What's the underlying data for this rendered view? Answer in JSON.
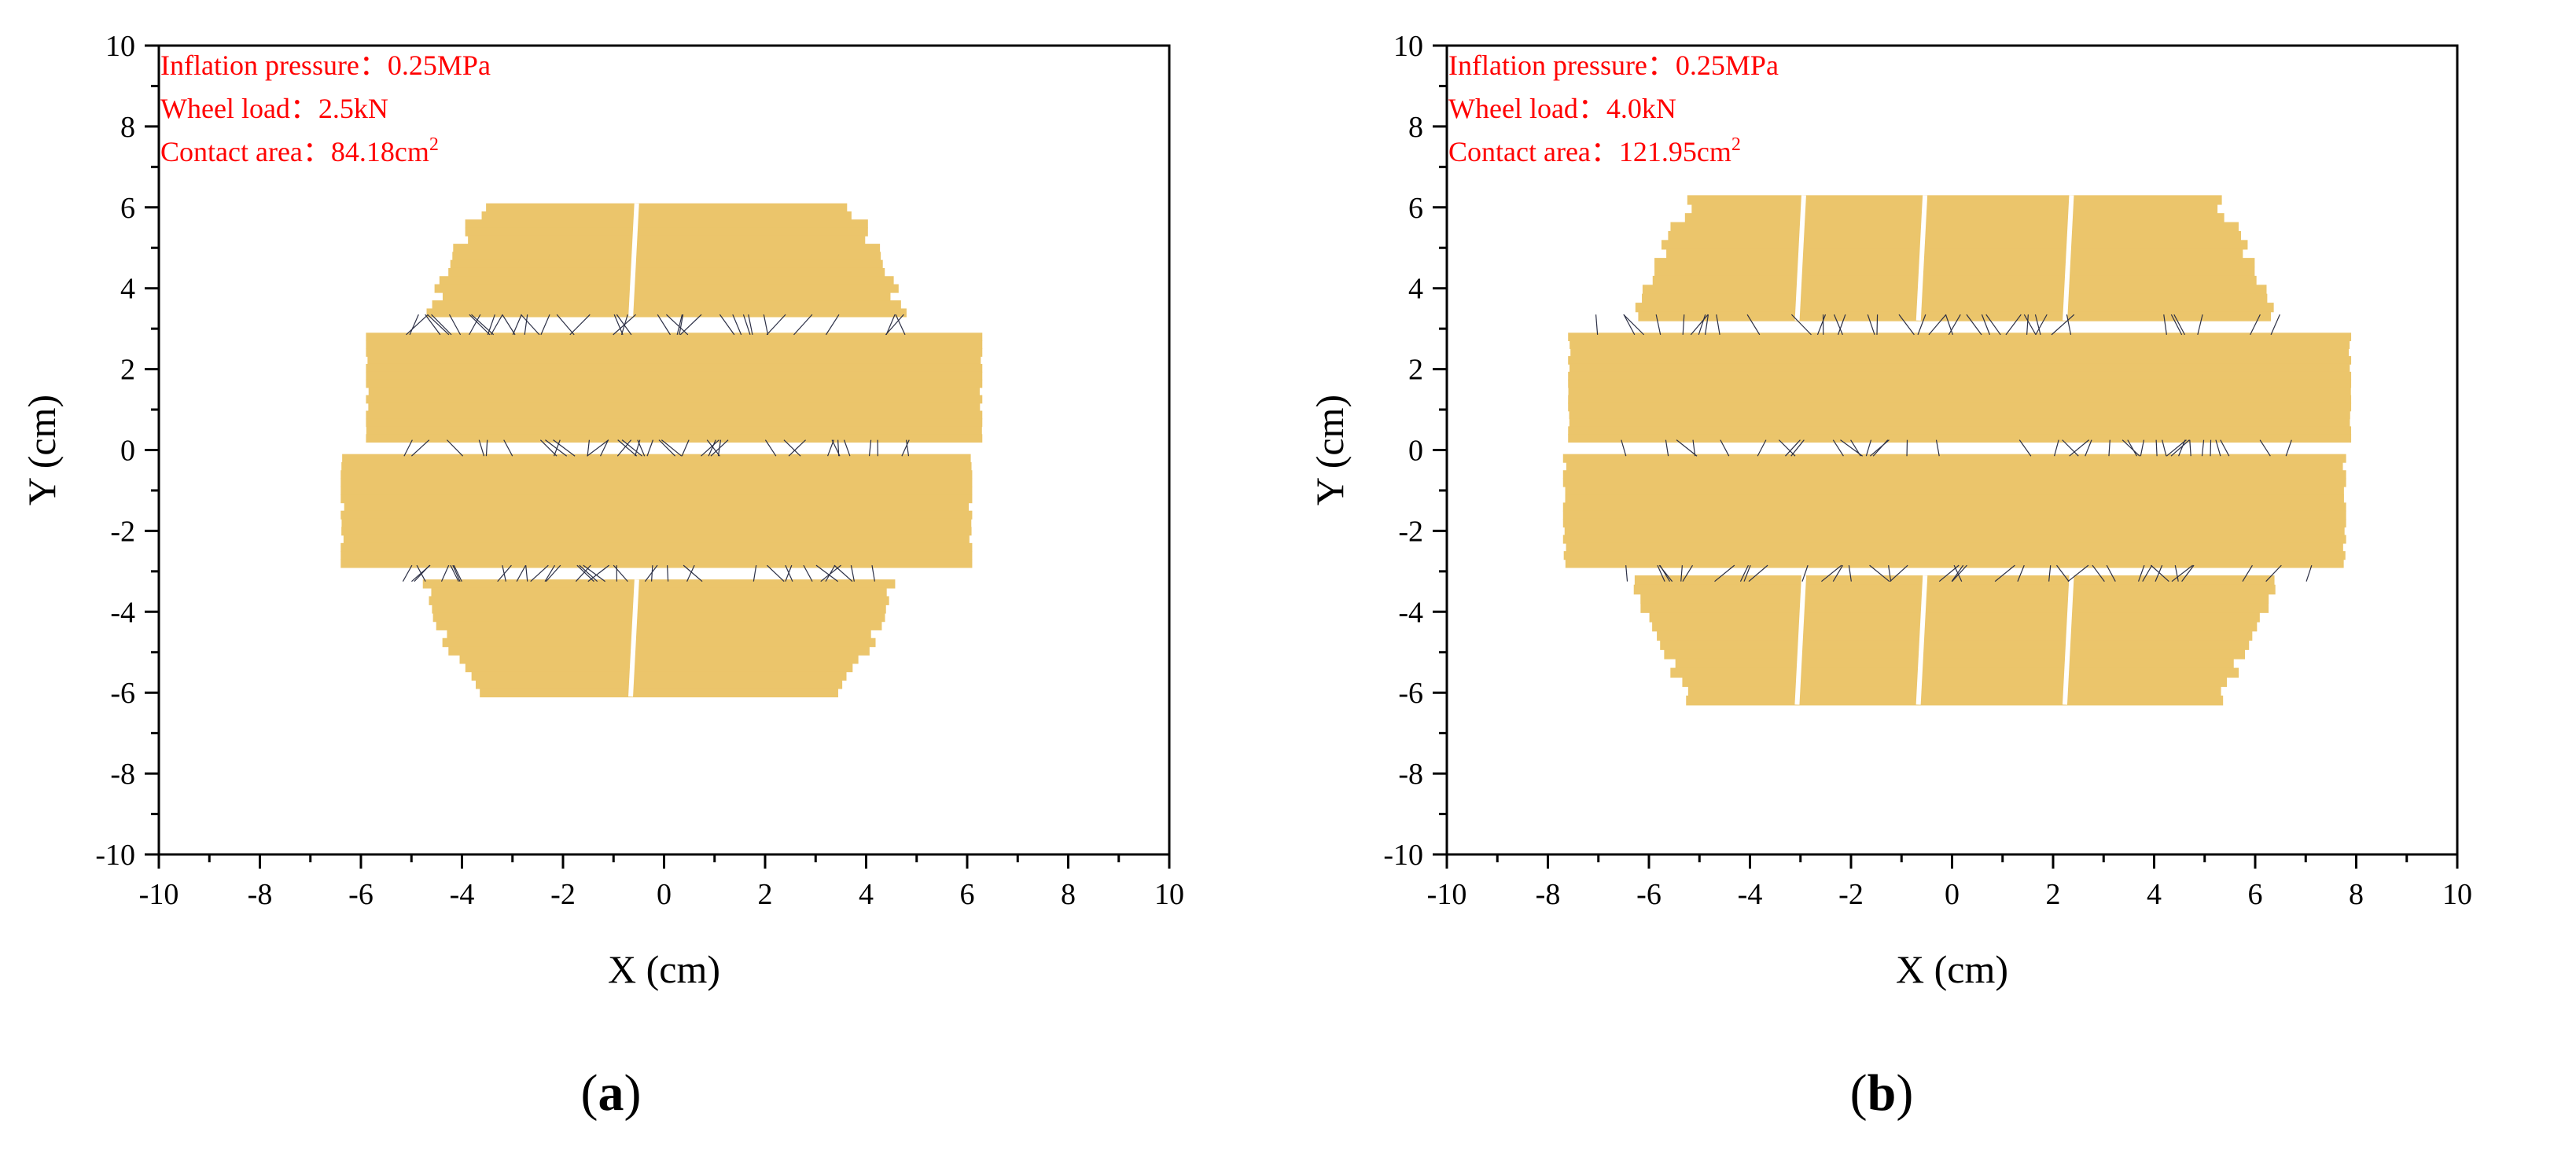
{
  "colors": {
    "patch": "#ebc56b",
    "annotation": "#ff0000",
    "axis": "#000000",
    "background": "#ffffff"
  },
  "chart_data": [
    {
      "type": "scatter",
      "panel_label": {
        "open": "(",
        "letter": "a",
        "close": ")"
      },
      "xlabel": "X (cm)",
      "ylabel": "Y (cm)",
      "xlim": [
        -10,
        10
      ],
      "ylim": [
        -10,
        10
      ],
      "xticks": [
        -10,
        -8,
        -6,
        -4,
        -2,
        0,
        2,
        4,
        6,
        8,
        10
      ],
      "yticks": [
        -10,
        -8,
        -6,
        -4,
        -2,
        0,
        2,
        4,
        6,
        8,
        10
      ],
      "grid": false,
      "annotations": [
        {
          "text": "Inflation pressure：0.25MPa",
          "sup": ""
        },
        {
          "text": "Wheel load：2.5kN",
          "sup": ""
        },
        {
          "text": "Contact area：84.18cm",
          "sup": "2"
        }
      ],
      "contact_bands": [
        {
          "y_top": 6.1,
          "y_bottom": 3.3,
          "x_left": -4.7,
          "x_right": 4.8
        },
        {
          "y_top": 2.9,
          "y_bottom": 0.2,
          "x_left": -5.9,
          "x_right": 6.3
        },
        {
          "y_top": -0.1,
          "y_bottom": -2.9,
          "x_left": -6.4,
          "x_right": 6.1
        },
        {
          "y_top": -3.2,
          "y_bottom": -6.1,
          "x_left": -4.8,
          "x_right": 4.6
        }
      ]
    },
    {
      "type": "scatter",
      "panel_label": {
        "open": "(",
        "letter": "b",
        "close": ")"
      },
      "xlabel": "X (cm)",
      "ylabel": "Y (cm)",
      "xlim": [
        -10,
        10
      ],
      "ylim": [
        -10,
        10
      ],
      "xticks": [
        -10,
        -8,
        -6,
        -4,
        -2,
        0,
        2,
        4,
        6,
        8,
        10
      ],
      "yticks": [
        -10,
        -8,
        -6,
        -4,
        -2,
        0,
        2,
        4,
        6,
        8,
        10
      ],
      "grid": false,
      "annotations": [
        {
          "text": "Inflation pressure：0.25MPa",
          "sup": ""
        },
        {
          "text": "Wheel load：4.0kN",
          "sup": ""
        },
        {
          "text": "Contact area：121.95cm",
          "sup": "2"
        }
      ],
      "contact_bands": [
        {
          "y_top": 6.3,
          "y_bottom": 3.2,
          "x_left": -6.3,
          "x_right": 6.4
        },
        {
          "y_top": 2.9,
          "y_bottom": 0.2,
          "x_left": -7.6,
          "x_right": 7.9
        },
        {
          "y_top": -0.1,
          "y_bottom": -2.9,
          "x_left": -7.7,
          "x_right": 7.8
        },
        {
          "y_top": -3.1,
          "y_bottom": -6.3,
          "x_left": -6.3,
          "x_right": 6.4
        }
      ]
    }
  ]
}
